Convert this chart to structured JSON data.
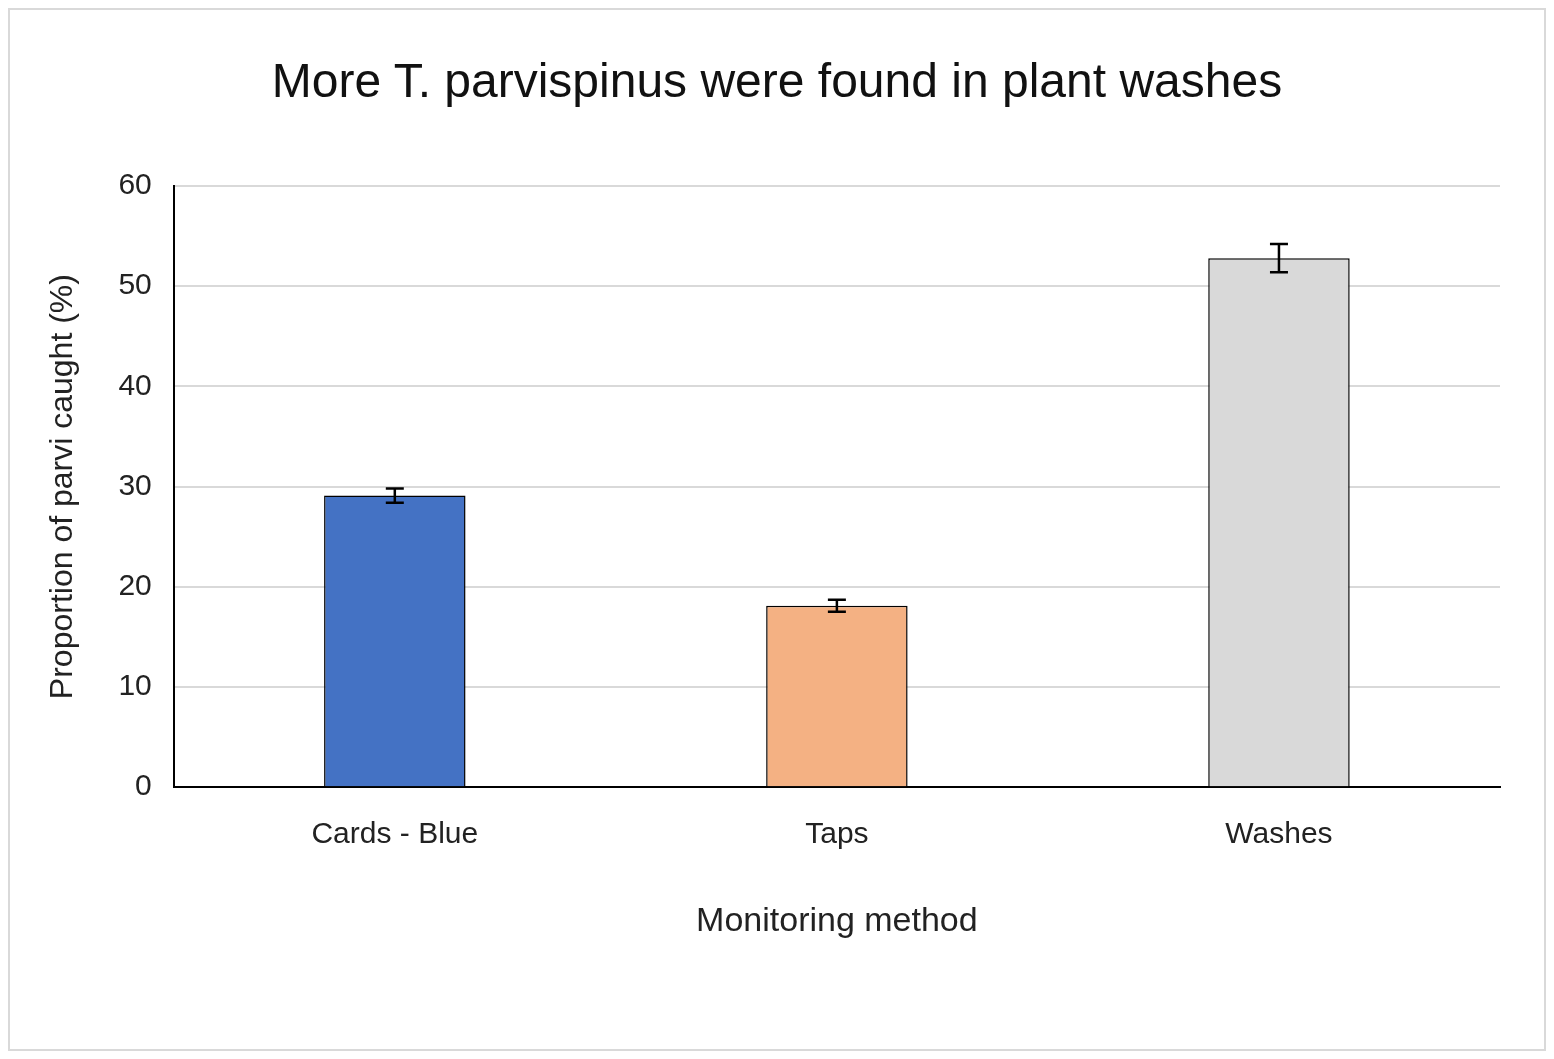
{
  "chart_data": {
    "type": "bar",
    "title": "More T. parvispinus were found in plant washes",
    "xlabel": "Monitoring method",
    "ylabel": "Proportion of parvi caught (%)",
    "categories": [
      "Cards - Blue",
      "Taps",
      "Washes"
    ],
    "values": [
      29.1,
      18.1,
      52.8
    ],
    "colors": [
      "#4472c4",
      "#f4b183",
      "#d9d9d9"
    ],
    "errors": [
      0.7,
      0.6,
      1.4
    ],
    "ylim": [
      0,
      60
    ],
    "yticks": [
      0,
      10,
      20,
      30,
      40,
      50,
      60
    ],
    "grid": "y",
    "legend": false
  }
}
